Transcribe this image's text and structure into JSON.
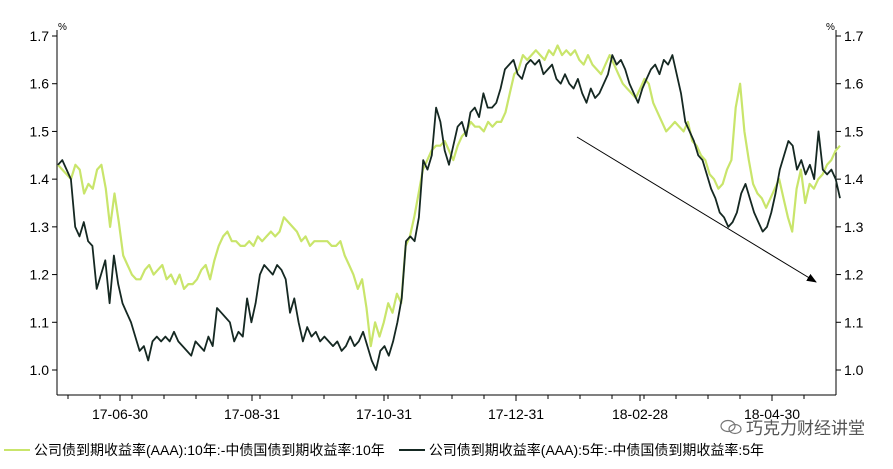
{
  "chart_data": {
    "type": "line",
    "title": "",
    "y_unit_left": "%",
    "y_unit_right": "%",
    "ylim": [
      0.95,
      1.72
    ],
    "y_ticks": [
      "1.0",
      "1.1",
      "1.2",
      "1.3",
      "1.4",
      "1.5",
      "1.6",
      "1.7"
    ],
    "x_tick_labels": [
      "17-06-30",
      "17-08-31",
      "17-10-31",
      "17-12-31",
      "18-02-28",
      "18-04-30"
    ],
    "grid": false,
    "legend_position": "bottom",
    "annotation": "downward arrow from 18-01 (~1.49) to 18-05 (~1.19)",
    "series": [
      {
        "name": "公司债到期收益率(AAA):10年:-中债国债到期收益率:10年",
        "color": "#c9e56b",
        "values": [
          1.43,
          1.42,
          1.41,
          1.4,
          1.43,
          1.42,
          1.37,
          1.39,
          1.38,
          1.42,
          1.43,
          1.38,
          1.3,
          1.37,
          1.31,
          1.24,
          1.22,
          1.2,
          1.19,
          1.19,
          1.21,
          1.22,
          1.2,
          1.21,
          1.22,
          1.19,
          1.2,
          1.18,
          1.2,
          1.17,
          1.18,
          1.18,
          1.19,
          1.21,
          1.22,
          1.19,
          1.23,
          1.26,
          1.28,
          1.29,
          1.27,
          1.27,
          1.26,
          1.26,
          1.27,
          1.26,
          1.28,
          1.27,
          1.28,
          1.29,
          1.28,
          1.29,
          1.32,
          1.31,
          1.3,
          1.29,
          1.27,
          1.28,
          1.26,
          1.27,
          1.27,
          1.27,
          1.27,
          1.26,
          1.26,
          1.27,
          1.24,
          1.22,
          1.2,
          1.17,
          1.19,
          1.13,
          1.05,
          1.1,
          1.07,
          1.1,
          1.14,
          1.12,
          1.16,
          1.14,
          1.26,
          1.28,
          1.32,
          1.37,
          1.42,
          1.44,
          1.46,
          1.47,
          1.47,
          1.48,
          1.46,
          1.44,
          1.47,
          1.49,
          1.5,
          1.52,
          1.51,
          1.51,
          1.5,
          1.52,
          1.51,
          1.52,
          1.52,
          1.54,
          1.58,
          1.62,
          1.63,
          1.66,
          1.65,
          1.66,
          1.67,
          1.66,
          1.65,
          1.67,
          1.66,
          1.68,
          1.66,
          1.67,
          1.66,
          1.67,
          1.65,
          1.64,
          1.66,
          1.64,
          1.63,
          1.62,
          1.64,
          1.66,
          1.64,
          1.62,
          1.6,
          1.59,
          1.58,
          1.57,
          1.59,
          1.61,
          1.6,
          1.56,
          1.54,
          1.52,
          1.5,
          1.51,
          1.52,
          1.51,
          1.5,
          1.52,
          1.48,
          1.47,
          1.45,
          1.44,
          1.41,
          1.4,
          1.38,
          1.39,
          1.42,
          1.44,
          1.55,
          1.6,
          1.5,
          1.44,
          1.39,
          1.37,
          1.36,
          1.34,
          1.36,
          1.38,
          1.4,
          1.36,
          1.32,
          1.29,
          1.38,
          1.42,
          1.35,
          1.39,
          1.38,
          1.4,
          1.41,
          1.43,
          1.44,
          1.46,
          1.47
        ]
      },
      {
        "name": "公司债到期收益率(AAA):5年:-中债国债到期收益率:5年",
        "color": "#152822",
        "values": [
          1.43,
          1.44,
          1.42,
          1.4,
          1.3,
          1.28,
          1.31,
          1.27,
          1.26,
          1.17,
          1.2,
          1.23,
          1.14,
          1.24,
          1.18,
          1.14,
          1.12,
          1.1,
          1.07,
          1.04,
          1.05,
          1.02,
          1.06,
          1.07,
          1.06,
          1.07,
          1.06,
          1.08,
          1.06,
          1.05,
          1.04,
          1.03,
          1.06,
          1.05,
          1.04,
          1.07,
          1.05,
          1.13,
          1.12,
          1.11,
          1.1,
          1.06,
          1.08,
          1.07,
          1.15,
          1.1,
          1.14,
          1.2,
          1.22,
          1.21,
          1.2,
          1.22,
          1.21,
          1.19,
          1.12,
          1.15,
          1.1,
          1.06,
          1.09,
          1.07,
          1.08,
          1.06,
          1.07,
          1.06,
          1.05,
          1.06,
          1.04,
          1.05,
          1.07,
          1.05,
          1.06,
          1.08,
          1.05,
          1.02,
          1.0,
          1.04,
          1.05,
          1.03,
          1.06,
          1.1,
          1.15,
          1.27,
          1.28,
          1.27,
          1.32,
          1.44,
          1.42,
          1.45,
          1.55,
          1.52,
          1.46,
          1.43,
          1.47,
          1.51,
          1.52,
          1.49,
          1.54,
          1.55,
          1.53,
          1.58,
          1.55,
          1.55,
          1.56,
          1.59,
          1.63,
          1.64,
          1.65,
          1.62,
          1.61,
          1.64,
          1.65,
          1.64,
          1.65,
          1.62,
          1.63,
          1.64,
          1.61,
          1.6,
          1.62,
          1.6,
          1.59,
          1.61,
          1.58,
          1.56,
          1.59,
          1.57,
          1.58,
          1.6,
          1.62,
          1.66,
          1.64,
          1.65,
          1.63,
          1.6,
          1.58,
          1.56,
          1.59,
          1.61,
          1.63,
          1.64,
          1.62,
          1.65,
          1.64,
          1.66,
          1.62,
          1.58,
          1.52,
          1.5,
          1.48,
          1.45,
          1.44,
          1.41,
          1.38,
          1.36,
          1.33,
          1.32,
          1.3,
          1.31,
          1.33,
          1.37,
          1.39,
          1.36,
          1.33,
          1.31,
          1.29,
          1.3,
          1.33,
          1.37,
          1.42,
          1.45,
          1.48,
          1.47,
          1.42,
          1.44,
          1.41,
          1.43,
          1.4,
          1.5,
          1.42,
          1.41,
          1.42,
          1.4,
          1.36
        ]
      }
    ]
  },
  "legend": [
    {
      "label": "公司债到期收益率(AAA):10年:-中债国债到期收益率:10年",
      "color": "#c9e56b"
    },
    {
      "label": "公司债到期收益率(AAA):5年:-中债国债到期收益率:5年",
      "color": "#152822"
    }
  ],
  "watermark": {
    "text": "巧克力财经讲堂",
    "icon": "wechat-icon"
  }
}
